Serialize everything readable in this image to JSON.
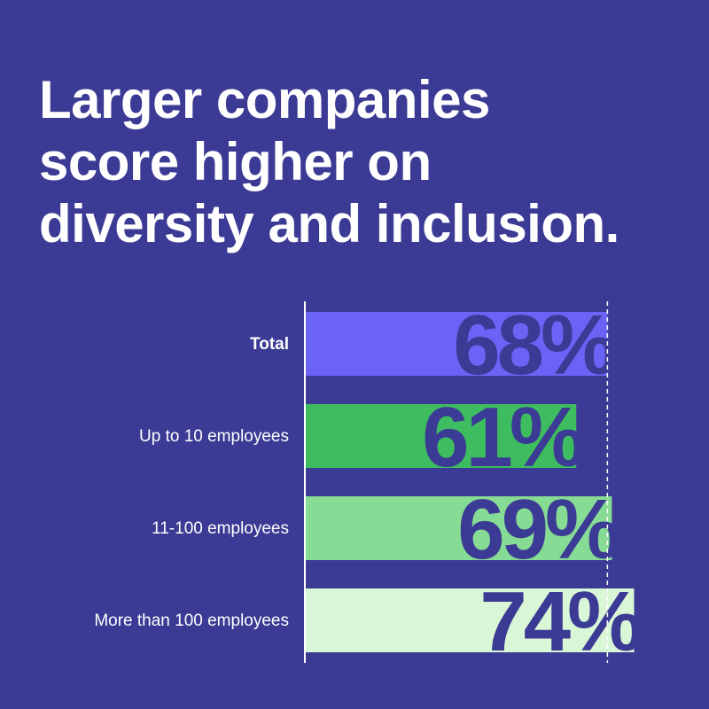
{
  "chart_data": {
    "type": "bar",
    "orientation": "horizontal",
    "title": [
      "Larger companies",
      "score higher on",
      "diversity and inclusion."
    ],
    "categories": [
      "Total",
      "Up to 10 employees",
      "11-100 employees",
      "More than 100 employees"
    ],
    "values": [
      68,
      61,
      69,
      74
    ],
    "value_labels": [
      "68%",
      "61%",
      "69%",
      "74%"
    ],
    "colors": [
      "#6b63f5",
      "#3dbd5f",
      "#86db95",
      "#d9f7d6"
    ]
  }
}
